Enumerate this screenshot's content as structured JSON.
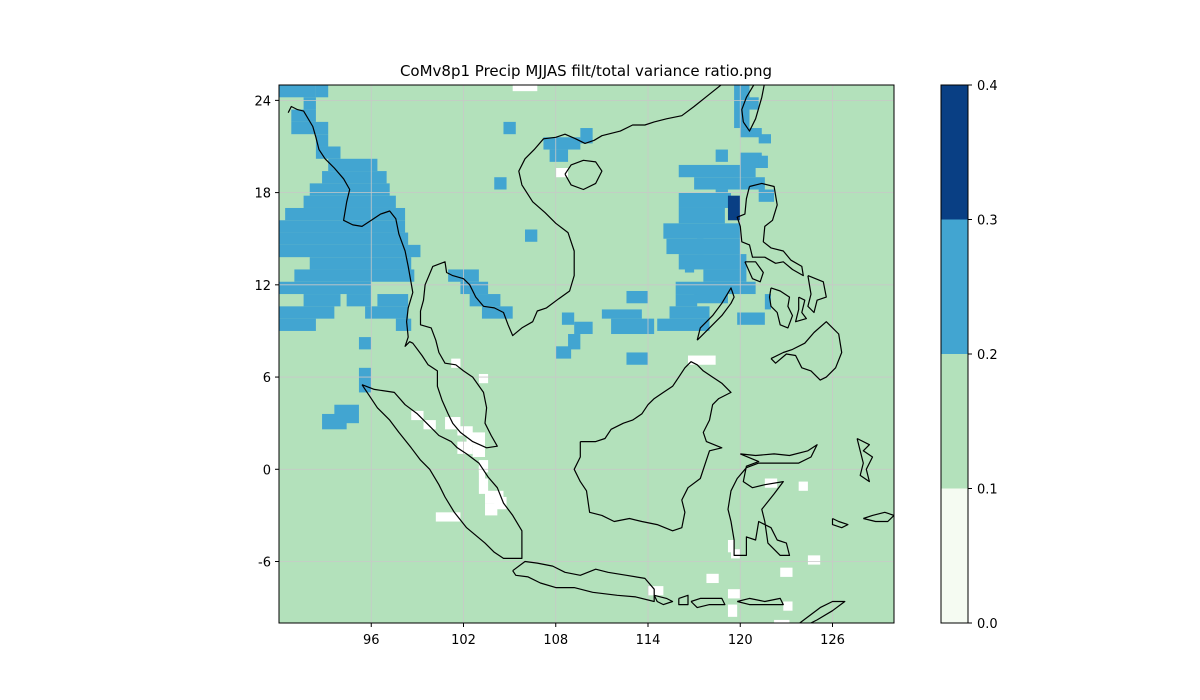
{
  "title": "CoMv8p1 Precip MJJAS filt/total variance ratio.png",
  "map": {
    "projection": "PlateCarree",
    "lon_range": [
      90,
      130
    ],
    "lat_range": [
      -10,
      25
    ],
    "lon_ticks": [
      96,
      102,
      108,
      114,
      120,
      126
    ],
    "lat_ticks": [
      -6,
      0,
      6,
      12,
      18,
      24
    ],
    "grid": true,
    "grid_color": "#c8c8c8",
    "coastline_color": "#000000",
    "background_level": "0.1-0.2"
  },
  "colorbar": {
    "boundaries": [
      0.0,
      0.1,
      0.2,
      0.3,
      0.4
    ],
    "tick_labels": [
      "0.0",
      "0.1",
      "0.2",
      "0.3",
      "0.4"
    ],
    "colors": [
      "#f5fbf2",
      "#b3e1bb",
      "#42a5d1",
      "#093f84"
    ],
    "placement": "right"
  },
  "colors": {
    "white_cell": "#ffffff",
    "level_01_02": "#b3e1bb",
    "level_02_03": "#42a5d1",
    "level_03_04": "#093f84"
  },
  "regions_03_04": [
    {
      "lon": [
        119.2,
        120.0
      ],
      "lat": [
        16.2,
        17.8
      ]
    }
  ],
  "regions_02_03_summary": [
    "Myanmar / Andaman coast (lon 90-98, lat 9-23)",
    "Gulf of Thailand / Cambodia coast (lon 102-106, lat 9-13)",
    "Hainan / Gulf of Tonkin (lon 107-110, lat 20-22)",
    "West of Luzon / Philippine Sea (lon 115-121, lat 9-24)",
    "Andaman Sea south (lon 92-96, lat 3-7)"
  ],
  "regions_lt_01_summary": [
    "Malacca Strait / Sumatra coast (lon 98-105, lat -3 to 7)",
    "Scattered near Java / Nusa Tenggara (lon 117-124, lat -10 to -5)"
  ]
}
